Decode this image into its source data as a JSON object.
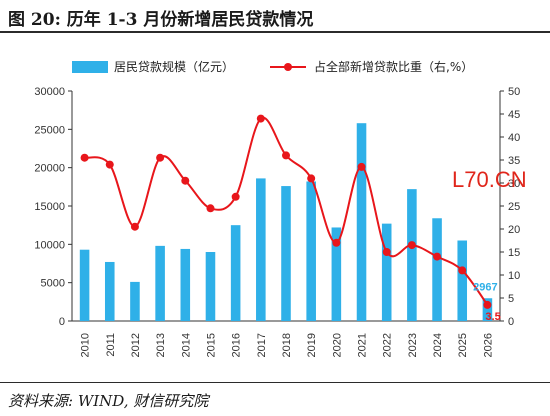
{
  "header": {
    "title": "图 20:  历年 1-3 月份新增居民贷款情况"
  },
  "footer": {
    "source": "资料来源: WIND, 财信研究院"
  },
  "watermark": "L70.CN",
  "colors": {
    "bar": "#2fb0e8",
    "line": "#e8161b",
    "axis": "#333333"
  },
  "chart_data": {
    "type": "bar",
    "categories": [
      "2010",
      "2011",
      "2012",
      "2013",
      "2014",
      "2015",
      "2016",
      "2017",
      "2018",
      "2019",
      "2020",
      "2021",
      "2022",
      "2023",
      "2024",
      "2025",
      "2026"
    ],
    "series": [
      {
        "name": "居民贷款规模（亿元）",
        "type": "bar",
        "axis": "left",
        "values": [
          9300,
          7700,
          5100,
          9800,
          9400,
          9000,
          12500,
          18600,
          17600,
          18200,
          12200,
          25800,
          12700,
          17200,
          13400,
          10500,
          2967
        ]
      },
      {
        "name": "占全部新增贷款比重（右,%）",
        "type": "line",
        "axis": "right",
        "values": [
          35.5,
          34,
          20.5,
          35.5,
          30.5,
          24.5,
          27,
          44,
          36,
          31,
          17,
          33.5,
          15,
          16.5,
          14,
          11,
          3.5
        ]
      }
    ],
    "y_left": {
      "lim": [
        0,
        30000
      ],
      "ticks": [
        0,
        5000,
        10000,
        15000,
        20000,
        25000,
        30000
      ]
    },
    "y_right": {
      "lim": [
        0,
        50
      ],
      "ticks": [
        0,
        5,
        10,
        15,
        20,
        25,
        30,
        35,
        40,
        45,
        50
      ]
    },
    "data_labels": [
      {
        "series": 0,
        "index": 16,
        "text": "2967"
      },
      {
        "series": 1,
        "index": 16,
        "text": "3.5"
      }
    ],
    "legend_position": "top",
    "grid": false
  }
}
